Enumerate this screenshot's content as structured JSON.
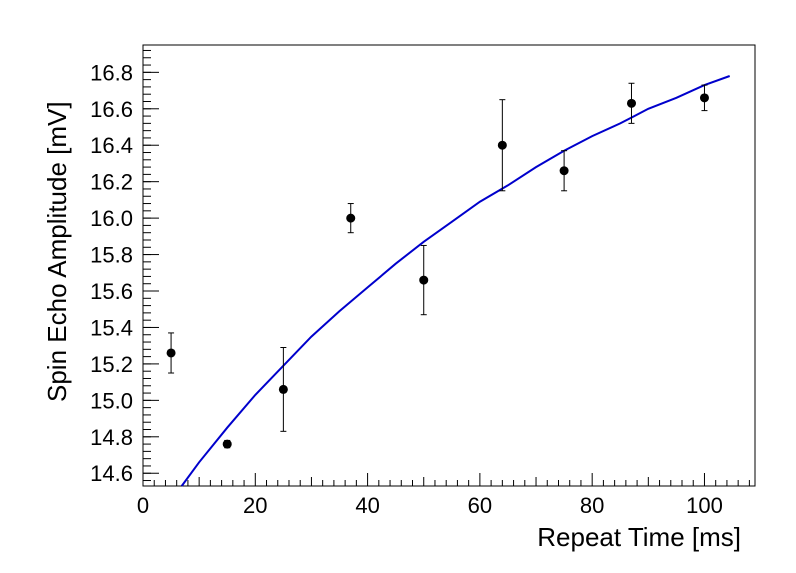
{
  "chart_data": {
    "type": "scatter",
    "xlabel": "Repeat Time [ms]",
    "ylabel": "Spin Echo Amplitude [mV]",
    "xlim": [
      0,
      109
    ],
    "ylim": [
      14.53,
      16.95
    ],
    "grid": false,
    "legend": "none",
    "x_ticks": [
      0,
      20,
      40,
      60,
      80,
      100
    ],
    "y_ticks": [
      14.6,
      14.8,
      15.0,
      15.2,
      15.4,
      15.6,
      15.8,
      16.0,
      16.2,
      16.4,
      16.6,
      16.8
    ],
    "x_tick_labels": [
      "0",
      "20",
      "40",
      "60",
      "80",
      "100"
    ],
    "y_tick_labels": [
      "14.6",
      "14.8",
      "15.0",
      "15.2",
      "15.4",
      "15.6",
      "15.8",
      "16.0",
      "16.2",
      "16.4",
      "16.6",
      "16.8"
    ],
    "points": [
      {
        "x": 5,
        "y": 15.26,
        "yerr": 0.11
      },
      {
        "x": 15,
        "y": 14.76,
        "yerr": 0.02
      },
      {
        "x": 25,
        "y": 15.06,
        "yerr": 0.23
      },
      {
        "x": 37,
        "y": 16.0,
        "yerr": 0.08
      },
      {
        "x": 50,
        "y": 15.66,
        "yerr": 0.19
      },
      {
        "x": 64,
        "y": 16.4,
        "yerr": 0.25
      },
      {
        "x": 75,
        "y": 16.26,
        "yerr": 0.11
      },
      {
        "x": 87,
        "y": 16.63,
        "yerr": 0.11
      },
      {
        "x": 100,
        "y": 16.66,
        "yerr": 0.07
      }
    ],
    "fit_curve": {
      "x": [
        6.9,
        10,
        15,
        20,
        25,
        30,
        35,
        40,
        45,
        50,
        55,
        60,
        65,
        70,
        75,
        80,
        85,
        90,
        95,
        100,
        104.5
      ],
      "y": [
        14.53,
        14.66,
        14.85,
        15.03,
        15.19,
        15.35,
        15.49,
        15.62,
        15.75,
        15.87,
        15.98,
        16.09,
        16.18,
        16.28,
        16.37,
        16.45,
        16.52,
        16.6,
        16.66,
        16.73,
        16.78
      ]
    },
    "colors": {
      "points": "#000000",
      "fit": "#0000cc",
      "axes": "#000000"
    }
  }
}
